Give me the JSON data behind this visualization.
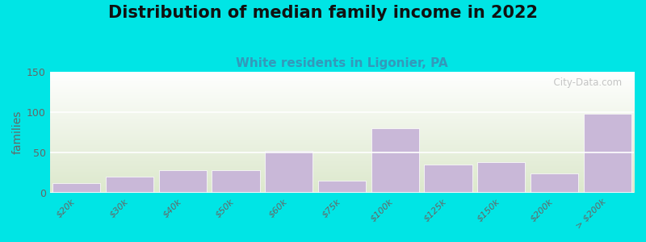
{
  "title": "Distribution of median family income in 2022",
  "subtitle": "White residents in Ligonier, PA",
  "categories": [
    "$20k",
    "$30k",
    "$40k",
    "$50k",
    "$60k",
    "$75k",
    "$100k",
    "$125k",
    "$150k",
    "$200k",
    "> $200k"
  ],
  "values": [
    12,
    20,
    28,
    28,
    52,
    15,
    80,
    35,
    38,
    24,
    98
  ],
  "bar_color": "#c9b8d8",
  "background_outer": "#00e5e5",
  "plot_bg_top": "#ffffff",
  "plot_bg_bottom": "#dce8cc",
  "ylabel": "families",
  "ylim": [
    0,
    150
  ],
  "yticks": [
    0,
    50,
    100,
    150
  ],
  "title_fontsize": 15,
  "subtitle_fontsize": 11,
  "subtitle_color": "#3399bb",
  "watermark_text": "  City-Data.com",
  "watermark_color": "#bbbbbb",
  "tick_color": "#666666",
  "tick_fontsize": 8
}
